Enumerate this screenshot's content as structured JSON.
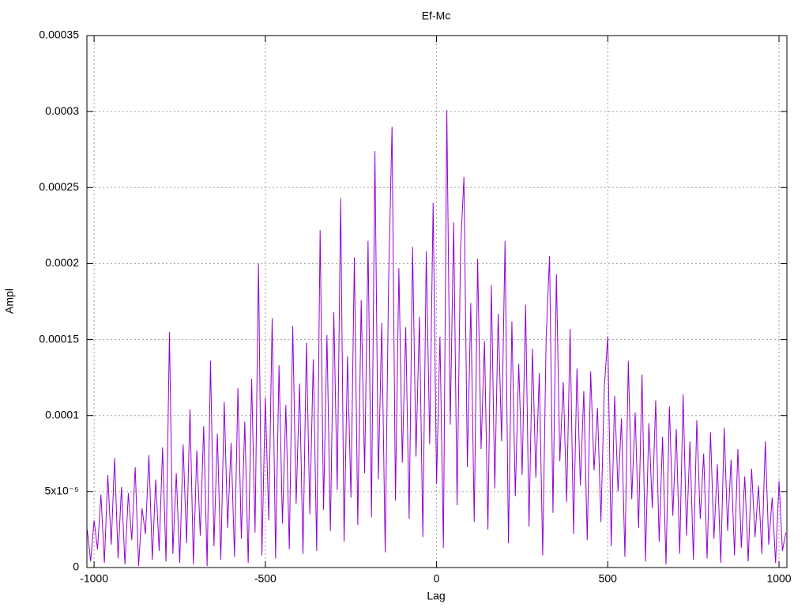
{
  "chart_data": {
    "type": "line",
    "title": "Ef-Mc",
    "x_label": "Lag",
    "y_label": "Ampl",
    "color": "#9400d3",
    "grid": true,
    "xlim": [
      -1021,
      1023
    ],
    "xticks": [
      -1000,
      -500,
      0,
      500,
      1000
    ],
    "ylim": [
      0,
      0.00035
    ],
    "yticks": [
      0,
      {
        "value": 5e-05,
        "label": "5x10⁻⁵"
      },
      0.0001,
      0.00015,
      0.0002,
      0.00025,
      0.0003,
      0.00035
    ],
    "x": [
      -1020,
      -1010,
      -1000,
      -990,
      -980,
      -970,
      -960,
      -950,
      -940,
      -930,
      -920,
      -910,
      -900,
      -890,
      -880,
      -870,
      -860,
      -850,
      -840,
      -830,
      -820,
      -810,
      -800,
      -790,
      -780,
      -770,
      -760,
      -750,
      -740,
      -730,
      -720,
      -710,
      -700,
      -690,
      -680,
      -670,
      -660,
      -650,
      -640,
      -630,
      -620,
      -610,
      -600,
      -590,
      -580,
      -570,
      -560,
      -550,
      -540,
      -530,
      -520,
      -510,
      -500,
      -490,
      -480,
      -470,
      -460,
      -450,
      -440,
      -430,
      -420,
      -410,
      -400,
      -390,
      -380,
      -370,
      -360,
      -350,
      -340,
      -330,
      -320,
      -310,
      -300,
      -290,
      -280,
      -270,
      -260,
      -250,
      -240,
      -230,
      -220,
      -210,
      -200,
      -190,
      -180,
      -170,
      -160,
      -150,
      -140,
      -130,
      -120,
      -110,
      -100,
      -90,
      -80,
      -70,
      -60,
      -50,
      -40,
      -30,
      -20,
      -10,
      0,
      10,
      20,
      30,
      40,
      50,
      60,
      70,
      80,
      90,
      100,
      110,
      120,
      130,
      140,
      150,
      160,
      170,
      180,
      190,
      200,
      210,
      220,
      230,
      240,
      250,
      260,
      270,
      280,
      290,
      300,
      310,
      320,
      330,
      340,
      350,
      360,
      370,
      380,
      390,
      400,
      410,
      420,
      430,
      440,
      450,
      460,
      470,
      480,
      490,
      500,
      510,
      520,
      530,
      540,
      550,
      560,
      570,
      580,
      590,
      600,
      610,
      620,
      630,
      640,
      650,
      660,
      670,
      680,
      690,
      700,
      710,
      720,
      730,
      740,
      750,
      760,
      770,
      780,
      790,
      800,
      810,
      820,
      830,
      840,
      850,
      860,
      870,
      880,
      890,
      900,
      910,
      920,
      930,
      940,
      950,
      960,
      970,
      980,
      990,
      1000,
      1010,
      1020
    ],
    "values": [
      2.5e-05,
      4e-06,
      3.1e-05,
      1.2e-05,
      4.8e-05,
      3e-06,
      6.1e-05,
      1.5e-05,
      7.2e-05,
      6e-06,
      5.3e-05,
      2e-06,
      4.9e-05,
      1.8e-05,
      6.6e-05,
      1e-06,
      3.9e-05,
      2.2e-05,
      7.4e-05,
      5e-06,
      5.8e-05,
      1.1e-05,
      7.9e-05,
      4e-06,
      0.000155,
      9e-06,
      6.2e-05,
      3e-06,
      8.1e-05,
      1.6e-05,
      0.000104,
      2e-06,
      7.7e-05,
      2.1e-05,
      9.3e-05,
      1e-06,
      0.000136,
      1.4e-05,
      8.8e-05,
      5e-06,
      0.000109,
      2.6e-05,
      8.2e-05,
      7e-06,
      0.000118,
      1.9e-05,
      9.6e-05,
      3e-06,
      0.000124,
      2.3e-05,
      0.0002,
      8e-06,
      0.000112,
      3.1e-05,
      0.000164,
      6e-06,
      0.000133,
      2.9e-05,
      0.000107,
      1.2e-05,
      0.000159,
      4.2e-05,
      0.000121,
      9e-06,
      0.000148,
      3.5e-05,
      0.000137,
      1.1e-05,
      0.000222,
      3.8e-05,
      0.000153,
      2.4e-05,
      0.000168,
      5.1e-05,
      0.000243,
      1.7e-05,
      0.000139,
      4.6e-05,
      0.000204,
      2.8e-05,
      0.000176,
      6.2e-05,
      0.000215,
      3.3e-05,
      0.000274,
      5.8e-05,
      0.000161,
      1e-05,
      0.000189,
      0.00029,
      4.4e-05,
      0.000197,
      6.9e-05,
      0.000158,
      3.2e-05,
      0.000211,
      7.3e-05,
      0.000165,
      2e-05,
      0.000208,
      8.1e-05,
      0.00024,
      5.5e-05,
      0.000152,
      1.3e-05,
      0.000301,
      9.4e-05,
      0.000227,
      4.1e-05,
      0.000209,
      0.000257,
      6.6e-05,
      0.000174,
      3e-05,
      0.000203,
      7.8e-05,
      0.000149,
      2.5e-05,
      0.000186,
      5.2e-05,
      0.000167,
      8.3e-05,
      0.000215,
      1.6e-05,
      0.000162,
      4.7e-05,
      0.000134,
      6.1e-05,
      0.000173,
      2.7e-05,
      0.000144,
      5.9e-05,
      0.000128,
      8e-06,
      0.000151,
      0.000205,
      3.6e-05,
      0.000193,
      7e-05,
      0.000122,
      4.3e-05,
      0.000157,
      2.2e-05,
      0.000131,
      5.4e-05,
      0.000116,
      1.8e-05,
      0.000129,
      6.4e-05,
      0.000105,
      3e-05,
      0.000119,
      0.000152,
      1.4e-05,
      0.000113,
      5e-05,
      9.8e-05,
      7e-06,
      0.000136,
      4.5e-05,
      0.000102,
      2.6e-05,
      0.000127,
      4e-06,
      9.5e-05,
      3.9e-05,
      0.00011,
      1.7e-05,
      8.6e-05,
      2e-06,
      0.000106,
      3.4e-05,
      9.1e-05,
      9e-06,
      0.000114,
      2.1e-05,
      8.3e-05,
      5e-06,
      9.7e-05,
      3.2e-05,
      7.5e-05,
      6e-06,
      8.9e-05,
      1.9e-05,
      6.8e-05,
      3e-06,
      9.2e-05,
      2.4e-05,
      7.1e-05,
      8e-06,
      7.8e-05,
      1.3e-05,
      6e-05,
      4e-06,
      6.5e-05,
      2e-05,
      5.4e-05,
      9e-06,
      8.3e-05,
      1.5e-05,
      4.6e-05,
      3e-06,
      5.7e-05,
      1.1e-05,
      2.3e-05
    ]
  }
}
